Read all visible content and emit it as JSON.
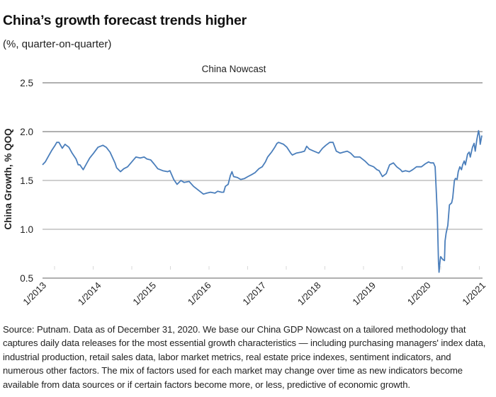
{
  "header": {
    "title": "China’s growth forecast trends higher",
    "subtitle": "(%, quarter-on-quarter)"
  },
  "footnote": "Source: Putnam. Data as of December 31, 2020. We base our China GDP Nowcast on a tailored methodology that captures daily data releases for the most essential growth characteristics — including purchasing managers' index data, industrial production, retail sales data, labor market metrics, real estate price indexes, sentiment indicators, and numerous other factors. The mix of factors used for each market may change over time as new indicators become available from data sources or if certain factors become more, or less, predictive of economic growth.",
  "colors": {
    "line": "#4a7ebb",
    "gridline_major": "#808080",
    "gridline_minor": "#bfbfbf",
    "tick": "#d9d9d9"
  },
  "chart_data": {
    "type": "line",
    "title": "China Nowcast",
    "xlabel": "",
    "ylabel": "China Growth, % QOQ",
    "xlim": [
      2013.0,
      2021.0
    ],
    "ylim": [
      0.5,
      2.5
    ],
    "yticks": [
      2.5,
      2.0,
      1.5,
      1.0,
      0.5
    ],
    "ytick_labels": [
      "2.5",
      "2.0",
      "1.5",
      "1.0",
      "0.5"
    ],
    "xticks": [
      2013,
      2014,
      2015,
      2016,
      2017,
      2018,
      2019,
      2020,
      2021
    ],
    "xtick_labels": [
      "1/2013",
      "1/2014",
      "1/2015",
      "1/2016",
      "1/2017",
      "1/2018",
      "1/2019",
      "1/2020",
      "1/2021"
    ],
    "grid": true,
    "legend": "none",
    "series": [
      {
        "name": "China Nowcast",
        "x": [
          2013.0,
          2013.05,
          2013.1,
          2013.17,
          2013.23,
          2013.26,
          2013.3,
          2013.36,
          2013.41,
          2013.48,
          2013.54,
          2013.61,
          2013.65,
          2013.68,
          2013.74,
          2013.8,
          2013.86,
          2013.93,
          2014.01,
          2014.1,
          2014.16,
          2014.23,
          2014.32,
          2014.35,
          2014.42,
          2014.48,
          2014.55,
          2014.64,
          2014.7,
          2014.78,
          2014.85,
          2014.9,
          2014.97,
          2015.03,
          2015.1,
          2015.19,
          2015.28,
          2015.32,
          2015.39,
          2015.45,
          2015.52,
          2015.58,
          2015.67,
          2015.75,
          2015.84,
          2015.93,
          2015.99,
          2016.06,
          2016.14,
          2016.19,
          2016.26,
          2016.3,
          2016.33,
          2016.38,
          2016.42,
          2016.45,
          2016.48,
          2016.55,
          2016.61,
          2016.68,
          2016.74,
          2016.81,
          2016.87,
          2016.94,
          2017.0,
          2017.06,
          2017.1,
          2017.17,
          2017.23,
          2017.27,
          2017.3,
          2017.39,
          2017.45,
          2017.52,
          2017.55,
          2017.62,
          2017.71,
          2017.77,
          2017.81,
          2017.86,
          2017.94,
          2018.03,
          2018.1,
          2018.16,
          2018.23,
          2018.29,
          2018.35,
          2018.42,
          2018.48,
          2018.55,
          2018.61,
          2018.68,
          2018.78,
          2018.87,
          2018.94,
          2019.03,
          2019.09,
          2019.13,
          2019.19,
          2019.26,
          2019.32,
          2019.39,
          2019.45,
          2019.52,
          2019.55,
          2019.61,
          2019.68,
          2019.74,
          2019.81,
          2019.9,
          2019.97,
          2020.03,
          2020.07,
          2020.12,
          2020.15,
          2020.17,
          2020.19,
          2020.2,
          2020.21,
          2020.22,
          2020.24,
          2020.25,
          2020.29,
          2020.32,
          2020.33,
          2020.35,
          2020.38,
          2020.41,
          2020.45,
          2020.47,
          2020.5,
          2020.52,
          2020.55,
          2020.57,
          2020.6,
          2020.63,
          2020.65,
          2020.68,
          2020.7,
          2020.74,
          2020.77,
          2020.79,
          2020.83,
          2020.86,
          2020.88,
          2020.91,
          2020.94,
          2020.96,
          2020.97,
          2021.0
        ],
        "values": [
          1.66,
          1.69,
          1.74,
          1.81,
          1.86,
          1.89,
          1.89,
          1.83,
          1.87,
          1.84,
          1.78,
          1.72,
          1.66,
          1.66,
          1.61,
          1.67,
          1.73,
          1.78,
          1.84,
          1.86,
          1.84,
          1.79,
          1.68,
          1.63,
          1.59,
          1.62,
          1.64,
          1.7,
          1.74,
          1.73,
          1.74,
          1.72,
          1.71,
          1.67,
          1.62,
          1.6,
          1.59,
          1.6,
          1.51,
          1.46,
          1.5,
          1.48,
          1.49,
          1.44,
          1.4,
          1.36,
          1.37,
          1.38,
          1.37,
          1.39,
          1.38,
          1.38,
          1.44,
          1.46,
          1.55,
          1.59,
          1.54,
          1.53,
          1.51,
          1.52,
          1.54,
          1.56,
          1.58,
          1.62,
          1.64,
          1.69,
          1.74,
          1.79,
          1.84,
          1.88,
          1.89,
          1.87,
          1.84,
          1.78,
          1.76,
          1.78,
          1.79,
          1.8,
          1.85,
          1.82,
          1.8,
          1.78,
          1.83,
          1.86,
          1.89,
          1.89,
          1.8,
          1.78,
          1.79,
          1.8,
          1.78,
          1.74,
          1.74,
          1.7,
          1.66,
          1.64,
          1.61,
          1.6,
          1.54,
          1.57,
          1.66,
          1.68,
          1.64,
          1.61,
          1.59,
          1.6,
          1.59,
          1.61,
          1.64,
          1.64,
          1.67,
          1.69,
          1.68,
          1.68,
          1.64,
          1.39,
          1.15,
          0.91,
          0.67,
          0.56,
          0.68,
          0.72,
          0.69,
          0.68,
          0.88,
          0.96,
          1.04,
          1.25,
          1.27,
          1.32,
          1.5,
          1.52,
          1.51,
          1.59,
          1.64,
          1.61,
          1.66,
          1.7,
          1.66,
          1.77,
          1.79,
          1.74,
          1.84,
          1.88,
          1.8,
          1.92,
          2.01,
          1.95,
          1.87,
          1.96
        ]
      }
    ]
  }
}
